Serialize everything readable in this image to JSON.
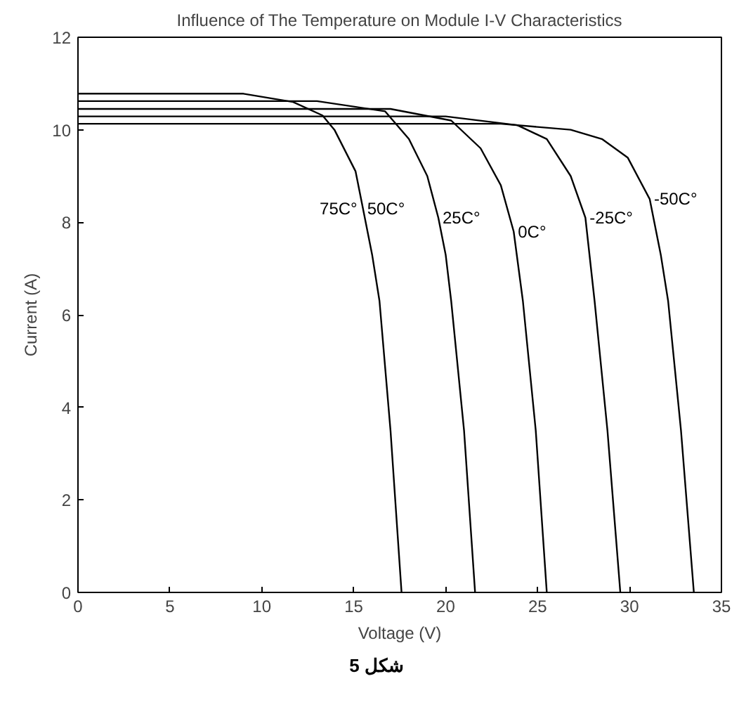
{
  "chart_data": {
    "type": "line",
    "title": "Influence of The Temperature on Module I-V Characteristics",
    "xlabel": "Voltage (V)",
    "ylabel": "Current (A)",
    "xlim": [
      0,
      35
    ],
    "ylim": [
      0,
      12
    ],
    "xticks": [
      0,
      5,
      10,
      15,
      20,
      25,
      30,
      35
    ],
    "yticks": [
      0,
      2,
      4,
      6,
      8,
      10,
      12
    ],
    "grid": false,
    "marker": "none",
    "line_style": "solid",
    "series": [
      {
        "color": "#000000",
        "x": [
          0,
          9,
          11.7,
          13.3,
          13.95,
          15.1,
          15.5,
          16.0,
          16.4,
          17.0,
          17.6
        ],
        "values": [
          10.78,
          10.78,
          10.6,
          10.31,
          10.0,
          9.1,
          8.3,
          7.3,
          6.3,
          3.5,
          0
        ]
      },
      {
        "color": "#000000",
        "x": [
          0,
          13,
          16.7,
          18.0,
          19.0,
          19.6,
          20.0,
          20.3,
          21.0,
          21.6
        ],
        "values": [
          10.62,
          10.62,
          10.4,
          9.8,
          9.0,
          8.1,
          7.3,
          6.3,
          3.5,
          0
        ]
      },
      {
        "color": "#000000",
        "x": [
          0,
          17,
          20.3,
          21.9,
          23.0,
          23.7,
          24.2,
          24.9,
          25.5
        ],
        "values": [
          10.45,
          10.45,
          10.2,
          9.6,
          8.8,
          7.8,
          6.3,
          3.5,
          0
        ]
      },
      {
        "color": "#000000",
        "x": [
          0,
          20,
          23.9,
          25.5,
          26.8,
          27.6,
          28.1,
          28.8,
          29.5
        ],
        "values": [
          10.29,
          10.29,
          10.1,
          9.8,
          9.0,
          8.1,
          6.3,
          3.5,
          0
        ]
      },
      {
        "color": "#000000",
        "x": [
          0,
          23,
          26.8,
          28.5,
          29.9,
          31.1,
          31.7,
          32.1,
          32.8,
          33.5
        ],
        "values": [
          10.13,
          10.13,
          10.0,
          9.8,
          9.4,
          8.5,
          7.3,
          6.3,
          3.5,
          0
        ]
      }
    ],
    "annotations": [
      {
        "text": "75C°",
        "x": 15.5,
        "y": 8.3
      },
      {
        "text": "50C°",
        "x": 15.5,
        "y": 8.3
      },
      {
        "text": "25C°",
        "x": 19.6,
        "y": 8.1
      },
      {
        "text": "0C°",
        "x": 23.7,
        "y": 7.8
      },
      {
        "text": "-25C°",
        "x": 27.6,
        "y": 8.1
      },
      {
        "text": "-50C°",
        "x": 31.1,
        "y": 8.5
      },
      "شكل 5"
    ]
  }
}
